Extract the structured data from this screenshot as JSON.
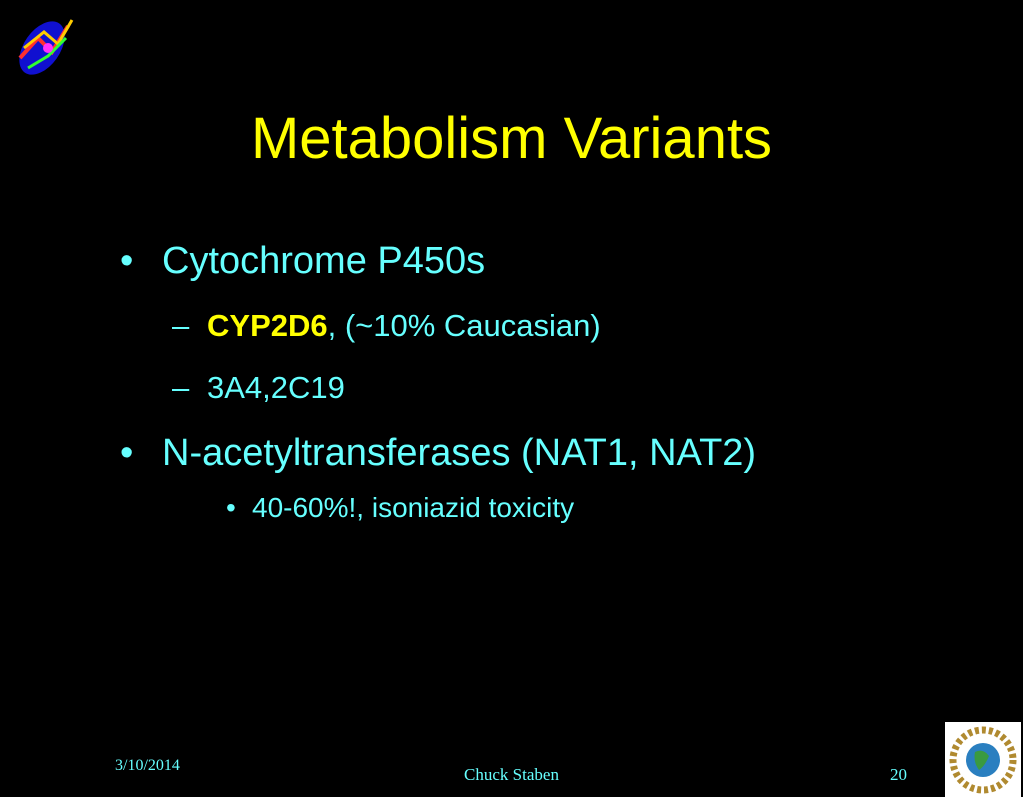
{
  "slide": {
    "title": "Metabolism Variants",
    "items": [
      {
        "level": 1,
        "marker": "•",
        "text": "Cytochrome P450s"
      },
      {
        "level": 2,
        "marker": "–",
        "bold": "CYP2D6",
        "text": ", (~10% Caucasian)"
      },
      {
        "level": 2,
        "marker": "–",
        "text": "3A4,2C19"
      },
      {
        "level": 1,
        "marker": "•",
        "text": "N-acetyltransferases (NAT1, NAT2)"
      },
      {
        "level": 3,
        "marker": "•",
        "text": "40-60%!, isoniazid toxicity"
      }
    ],
    "footer": {
      "date": "3/10/2014",
      "author": "Chuck Staben",
      "page": "20"
    }
  }
}
